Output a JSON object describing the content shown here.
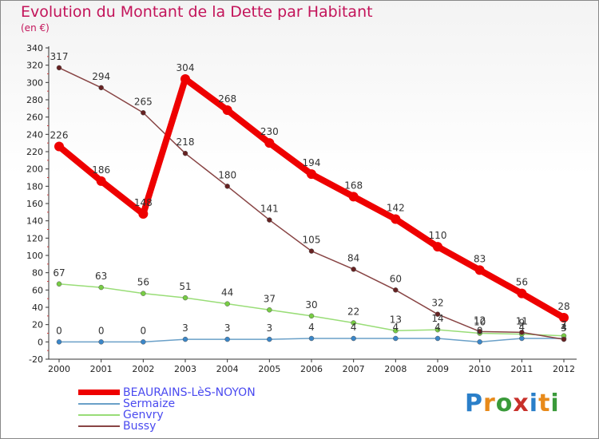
{
  "title": "Evolution du Montant de la Dette par Habitant",
  "unit": "(en €)",
  "brand": {
    "text": "Proxiti",
    "letter_colors": [
      "#2a7fc9",
      "#e88a1a",
      "#3a9a3a",
      "#c8302a",
      "#2a7fc9",
      "#e88a1a",
      "#3a9a3a"
    ]
  },
  "chart_data": {
    "type": "line",
    "title": "Evolution du Montant de la Dette par Habitant",
    "ylabel": "(en €)",
    "xlabel": "",
    "x": [
      "2000",
      "2001",
      "2002",
      "2003",
      "2004",
      "2005",
      "2006",
      "2007",
      "2008",
      "2009",
      "2010",
      "2011",
      "2012"
    ],
    "ylim": [
      -20,
      340
    ],
    "yticks": [
      -20,
      0,
      20,
      40,
      60,
      80,
      100,
      120,
      140,
      160,
      180,
      200,
      220,
      240,
      260,
      280,
      300,
      320,
      340
    ],
    "grid": false,
    "legend_position": "bottom-left",
    "series": [
      {
        "name": "BEAURAINS-LèS-NOYON",
        "color": "#ee0000",
        "values": [
          226,
          186,
          148,
          304,
          268,
          230,
          194,
          168,
          142,
          110,
          83,
          56,
          28
        ]
      },
      {
        "name": "Sermaize",
        "color": "#6aa0c8",
        "values": [
          0,
          0,
          0,
          3,
          3,
          3,
          4,
          4,
          4,
          4,
          0,
          4,
          4
        ]
      },
      {
        "name": "Genvry",
        "color": "#99dd77",
        "values": [
          67,
          63,
          56,
          51,
          44,
          37,
          30,
          22,
          13,
          14,
          10,
          9,
          7
        ]
      },
      {
        "name": "Bussy",
        "color": "#884444",
        "values": [
          317,
          294,
          265,
          218,
          180,
          141,
          105,
          84,
          60,
          32,
          12,
          11,
          3
        ]
      }
    ]
  }
}
